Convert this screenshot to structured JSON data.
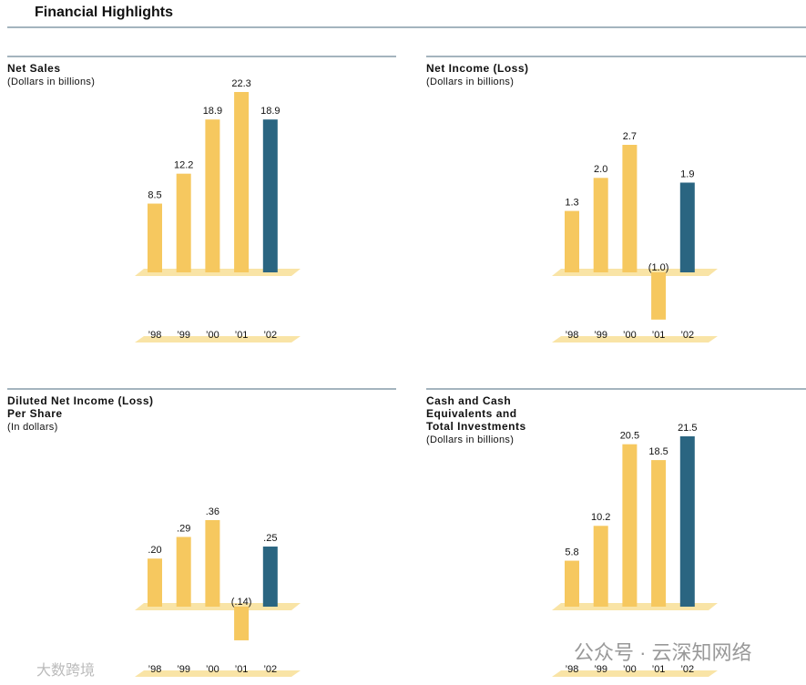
{
  "title": "Financial Highlights",
  "watermarks": [
    "大数跨境",
    "公众号 · 云深知网络"
  ],
  "chart_data": [
    {
      "type": "bar",
      "title": [
        "Net Sales"
      ],
      "subtitle": "(Dollars in billions)",
      "categories": [
        "’98",
        "’99",
        "’00",
        "’01",
        "’02"
      ],
      "values": [
        8.5,
        12.2,
        18.9,
        22.3,
        18.9
      ],
      "value_labels": [
        "8.5",
        "12.2",
        "18.9",
        "22.3",
        "18.9"
      ],
      "colors": [
        "#f6c85f",
        "#f6c85f",
        "#f6c85f",
        "#f6c85f",
        "#2a6581"
      ]
    },
    {
      "type": "bar",
      "title": [
        "Net Income (Loss)"
      ],
      "subtitle": "(Dollars in billions)",
      "categories": [
        "’98",
        "’99",
        "’00",
        "’01",
        "’02"
      ],
      "values": [
        1.3,
        2.0,
        2.7,
        -1.0,
        1.9
      ],
      "value_labels": [
        "1.3",
        "2.0",
        "2.7",
        "(1.0)",
        "1.9"
      ],
      "colors": [
        "#f6c85f",
        "#f6c85f",
        "#f6c85f",
        "#f6c85f",
        "#2a6581"
      ]
    },
    {
      "type": "bar",
      "title": [
        "Diluted Net Income (Loss)",
        "Per Share"
      ],
      "subtitle": "(In dollars)",
      "categories": [
        "’98",
        "’99",
        "’00",
        "’01",
        "’02"
      ],
      "values": [
        0.2,
        0.29,
        0.36,
        -0.14,
        0.25
      ],
      "value_labels": [
        ".20",
        ".29",
        ".36",
        "(.14)",
        ".25"
      ],
      "colors": [
        "#f6c85f",
        "#f6c85f",
        "#f6c85f",
        "#f6c85f",
        "#2a6581"
      ]
    },
    {
      "type": "bar",
      "title": [
        "Cash and Cash",
        "Equivalents and",
        "Total Investments"
      ],
      "subtitle": "(Dollars in billions)",
      "categories": [
        "’98",
        "’99",
        "’00",
        "’01",
        "’02"
      ],
      "values": [
        5.8,
        10.2,
        20.5,
        18.5,
        21.5
      ],
      "value_labels": [
        "5.8",
        "10.2",
        "20.5",
        "18.5",
        "21.5"
      ],
      "colors": [
        "#f6c85f",
        "#f6c85f",
        "#f6c85f",
        "#f6c85f",
        "#2a6581"
      ]
    }
  ]
}
